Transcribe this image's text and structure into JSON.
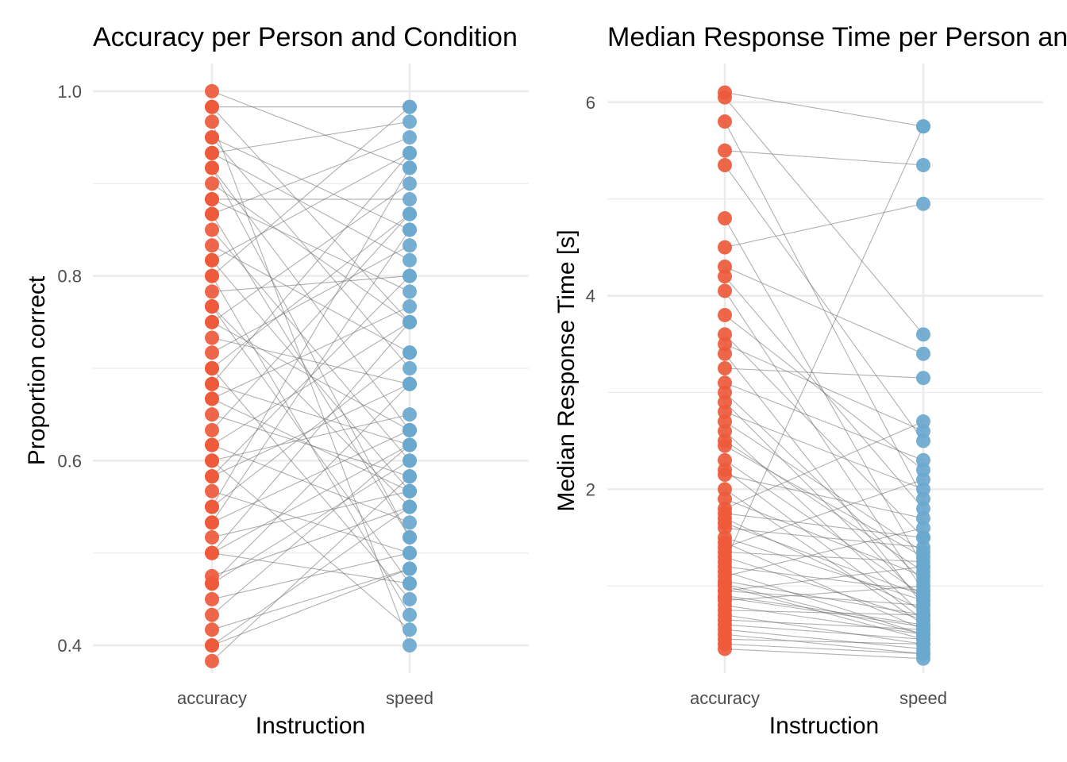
{
  "colors": {
    "accuracy": "#EE5A3B",
    "speed": "#6BA8CE",
    "line": "#6f6f6f"
  },
  "chart_data": [
    {
      "type": "line",
      "title": "Accuracy per Person and Condition",
      "xlabel": "Instruction",
      "ylabel": "Proportion correct",
      "categories": [
        "accuracy",
        "speed"
      ],
      "yticks": [
        "0.4",
        "0.6",
        "0.8",
        "1.0"
      ],
      "ylim": [
        0.37,
        1.03
      ],
      "grid": true,
      "legend": "none",
      "series": [
        {
          "values": [
            0.383,
            0.583
          ]
        },
        {
          "values": [
            0.4,
            0.55
          ]
        },
        {
          "values": [
            0.417,
            0.483
          ]
        },
        {
          "values": [
            0.433,
            0.617
          ]
        },
        {
          "values": [
            0.45,
            0.5
          ]
        },
        {
          "values": [
            0.467,
            0.683
          ]
        },
        {
          "values": [
            0.475,
            0.55
          ]
        },
        {
          "values": [
            0.5,
            0.75
          ]
        },
        {
          "values": [
            0.5,
            0.467
          ]
        },
        {
          "values": [
            0.517,
            0.567
          ]
        },
        {
          "values": [
            0.533,
            0.633
          ]
        },
        {
          "values": [
            0.55,
            0.717
          ]
        },
        {
          "values": [
            0.567,
            0.5
          ]
        },
        {
          "values": [
            0.583,
            0.8
          ]
        },
        {
          "values": [
            0.6,
            0.65
          ]
        },
        {
          "values": [
            0.617,
            0.533
          ]
        },
        {
          "values": [
            0.633,
            0.867
          ]
        },
        {
          "values": [
            0.65,
            0.583
          ]
        },
        {
          "values": [
            0.667,
            0.767
          ]
        },
        {
          "values": [
            0.683,
            0.617
          ]
        },
        {
          "values": [
            0.7,
            0.45
          ]
        },
        {
          "values": [
            0.717,
            0.833
          ]
        },
        {
          "values": [
            0.733,
            0.683
          ]
        },
        {
          "values": [
            0.75,
            0.9
          ]
        },
        {
          "values": [
            0.767,
            0.55
          ]
        },
        {
          "values": [
            0.783,
            0.8
          ]
        },
        {
          "values": [
            0.8,
            0.433
          ]
        },
        {
          "values": [
            0.817,
            0.933
          ]
        },
        {
          "values": [
            0.833,
            0.717
          ]
        },
        {
          "values": [
            0.85,
            0.6
          ]
        },
        {
          "values": [
            0.867,
            0.95
          ]
        },
        {
          "values": [
            0.883,
            0.883
          ]
        },
        {
          "values": [
            0.9,
            0.75
          ]
        },
        {
          "values": [
            0.917,
            0.517
          ]
        },
        {
          "values": [
            0.933,
            0.967
          ]
        },
        {
          "values": [
            0.95,
            0.85
          ]
        },
        {
          "values": [
            0.967,
            0.4
          ]
        },
        {
          "values": [
            0.983,
            0.983
          ]
        },
        {
          "values": [
            1.0,
            0.917
          ]
        },
        {
          "values": [
            0.4,
            0.483
          ]
        },
        {
          "values": [
            0.467,
            0.6
          ]
        },
        {
          "values": [
            0.55,
            0.917
          ]
        },
        {
          "values": [
            0.617,
            0.75
          ]
        },
        {
          "values": [
            0.683,
            0.933
          ]
        },
        {
          "values": [
            0.75,
            0.633
          ]
        },
        {
          "values": [
            0.817,
            0.567
          ]
        },
        {
          "values": [
            0.883,
            0.783
          ]
        },
        {
          "values": [
            0.95,
            0.7
          ]
        },
        {
          "values": [
            0.8,
            0.983
          ]
        },
        {
          "values": [
            0.7,
            0.867
          ]
        },
        {
          "values": [
            0.6,
            0.417
          ]
        },
        {
          "values": [
            0.5,
            0.617
          ]
        },
        {
          "values": [
            0.917,
            0.633
          ]
        },
        {
          "values": [
            0.867,
            0.517
          ]
        },
        {
          "values": [
            0.767,
            0.467
          ]
        },
        {
          "values": [
            0.667,
            0.567
          ]
        },
        {
          "values": [
            0.583,
            0.683
          ]
        },
        {
          "values": [
            0.533,
            0.85
          ]
        },
        {
          "values": [
            0.983,
            0.75
          ]
        },
        {
          "values": [
            0.933,
            0.817
          ]
        }
      ]
    },
    {
      "type": "line",
      "title": "Median Response Time per Person and Condition",
      "xlabel": "Instruction",
      "ylabel": "Median Response Time [s]",
      "categories": [
        "accuracy",
        "speed"
      ],
      "yticks": [
        "2",
        "4",
        "6"
      ],
      "ylim": [
        0.1,
        6.4
      ],
      "grid": true,
      "legend": "none",
      "series": [
        {
          "values": [
            6.1,
            5.75
          ]
        },
        {
          "values": [
            6.05,
            3.6
          ]
        },
        {
          "values": [
            5.8,
            1.9
          ]
        },
        {
          "values": [
            5.5,
            5.35
          ]
        },
        {
          "values": [
            5.35,
            2.5
          ]
        },
        {
          "values": [
            4.8,
            1.2
          ]
        },
        {
          "values": [
            4.5,
            4.95
          ]
        },
        {
          "values": [
            4.3,
            3.4
          ]
        },
        {
          "values": [
            4.05,
            0.95
          ]
        },
        {
          "values": [
            3.8,
            2.2
          ]
        },
        {
          "values": [
            3.6,
            1.5
          ]
        },
        {
          "values": [
            3.4,
            0.8
          ]
        },
        {
          "values": [
            3.25,
            3.15
          ]
        },
        {
          "values": [
            3.0,
            1.05
          ]
        },
        {
          "values": [
            2.8,
            2.0
          ]
        },
        {
          "values": [
            2.6,
            0.7
          ]
        },
        {
          "values": [
            2.45,
            1.3
          ]
        },
        {
          "values": [
            2.3,
            0.9
          ]
        },
        {
          "values": [
            2.15,
            1.7
          ]
        },
        {
          "values": [
            2.0,
            0.6
          ]
        },
        {
          "values": [
            1.9,
            1.1
          ]
        },
        {
          "values": [
            1.8,
            2.7
          ]
        },
        {
          "values": [
            1.7,
            0.75
          ]
        },
        {
          "values": [
            1.6,
            1.4
          ]
        },
        {
          "values": [
            1.5,
            0.85
          ]
        },
        {
          "values": [
            1.45,
            0.55
          ]
        },
        {
          "values": [
            1.35,
            1.25
          ]
        },
        {
          "values": [
            1.3,
            0.65
          ]
        },
        {
          "values": [
            1.2,
            0.95
          ]
        },
        {
          "values": [
            1.15,
            0.5
          ]
        },
        {
          "values": [
            1.1,
            1.6
          ]
        },
        {
          "values": [
            1.05,
            0.7
          ]
        },
        {
          "values": [
            1.0,
            0.45
          ]
        },
        {
          "values": [
            0.95,
            0.8
          ]
        },
        {
          "values": [
            0.9,
            0.6
          ]
        },
        {
          "values": [
            0.85,
            1.0
          ]
        },
        {
          "values": [
            0.8,
            0.5
          ]
        },
        {
          "values": [
            0.75,
            0.7
          ]
        },
        {
          "values": [
            0.7,
            0.4
          ]
        },
        {
          "values": [
            0.65,
            0.55
          ]
        },
        {
          "values": [
            0.6,
            0.45
          ]
        },
        {
          "values": [
            0.55,
            0.35
          ]
        },
        {
          "values": [
            0.5,
            0.3
          ]
        },
        {
          "values": [
            0.45,
            0.4
          ]
        },
        {
          "values": [
            0.4,
            0.3
          ]
        },
        {
          "values": [
            0.35,
            0.25
          ]
        },
        {
          "values": [
            1.25,
            5.75
          ]
        },
        {
          "values": [
            2.5,
            1.15
          ]
        },
        {
          "values": [
            3.1,
            2.3
          ]
        },
        {
          "values": [
            2.9,
            0.85
          ]
        },
        {
          "values": [
            1.75,
            1.5
          ]
        },
        {
          "values": [
            1.4,
            2.1
          ]
        },
        {
          "values": [
            2.2,
            0.65
          ]
        },
        {
          "values": [
            0.95,
            1.2
          ]
        },
        {
          "values": [
            4.2,
            1.8
          ]
        },
        {
          "values": [
            3.5,
            2.6
          ]
        },
        {
          "values": [
            1.65,
            0.9
          ]
        },
        {
          "values": [
            0.88,
            0.58
          ]
        },
        {
          "values": [
            1.02,
            0.5
          ]
        },
        {
          "values": [
            2.7,
            1.35
          ]
        }
      ]
    }
  ]
}
